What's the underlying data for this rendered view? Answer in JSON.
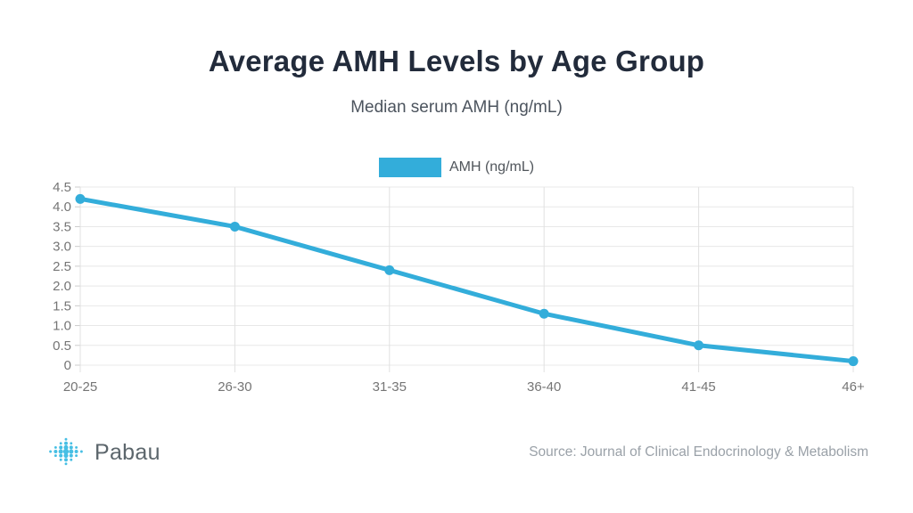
{
  "header": {
    "title": "Average AMH Levels by Age Group",
    "subtitle": "Median serum AMH (ng/mL)"
  },
  "chart_data": {
    "type": "line",
    "title": "Average AMH Levels by Age Group",
    "subtitle": "Median serum AMH (ng/mL)",
    "categories": [
      "20-25",
      "26-30",
      "31-35",
      "36-40",
      "41-45",
      "46+"
    ],
    "series": [
      {
        "name": "AMH (ng/mL)",
        "values": [
          4.2,
          3.5,
          2.4,
          1.3,
          0.5,
          0.1
        ]
      }
    ],
    "xlabel": "",
    "ylabel": "",
    "ylim": [
      0,
      4.5
    ],
    "ytick_labels": [
      "4.5",
      "4.0",
      "3.5",
      "3.0",
      "2.5",
      "2.0",
      "1.5",
      "1.0",
      "0.5",
      "0"
    ],
    "grid": true,
    "legend_position": "top",
    "colors": {
      "line": "#33ADDA",
      "h_grid": "#e8e8e8",
      "v_grid": "#e0e0e0",
      "tick": "#cccccc",
      "tick_label": "#757575"
    }
  },
  "footer": {
    "brand": "Pabau",
    "source": "Source: Journal of Clinical Endocrinology & Metabolism",
    "logo_color": "#47BFE4"
  }
}
